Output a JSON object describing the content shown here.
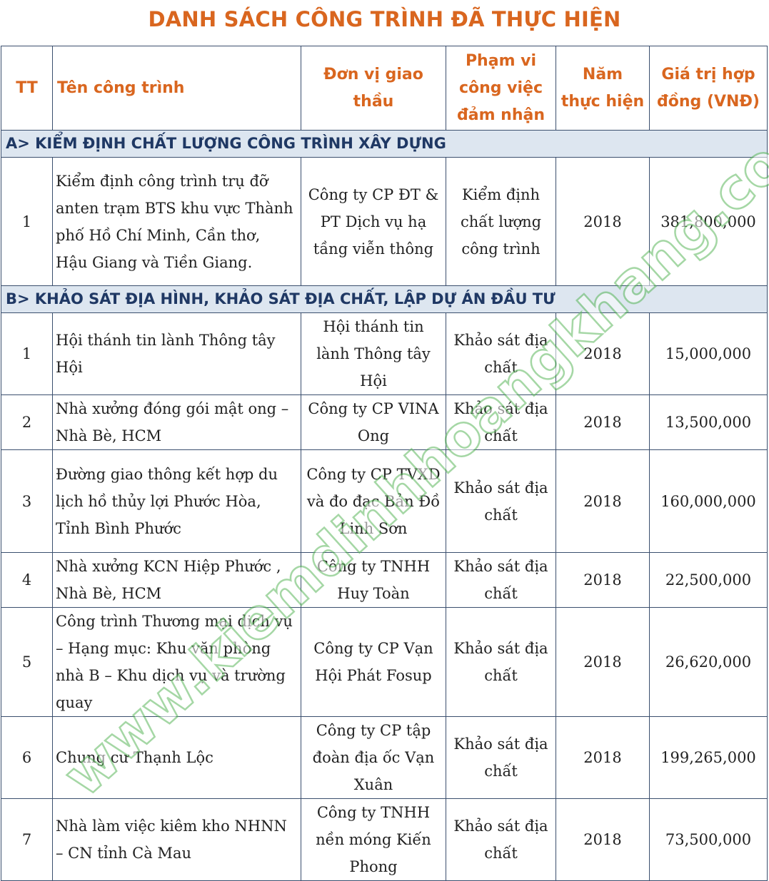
{
  "title": "DANH SÁCH CÔNG TRÌNH ĐÃ THỰC HIỆN",
  "header": {
    "tt": "TT",
    "name": "Tên công trình",
    "unit": "Đơn vị giao thầu",
    "scope": "Phạm vi công việc đảm nhận",
    "year": "Năm thực hiện",
    "value": "Giá trị hợp đồng (VNĐ)"
  },
  "sections": [
    {
      "title": "A> KIỂM ĐỊNH CHẤT LƯỢNG CÔNG TRÌNH XÂY DỰNG",
      "rows": [
        {
          "tt": "1",
          "name": "Kiểm định công trình trụ đỡ anten trạm BTS khu vực Thành phố Hồ Chí Minh, Cần thơ, Hậu Giang và Tiền Giang.",
          "unit": "Công ty CP ĐT & PT Dịch vụ hạ tầng viễn thông",
          "scope": "Kiểm định chất lượng công trình",
          "year": "2018",
          "value": "381,800,000"
        }
      ]
    },
    {
      "title": "B> KHẢO SÁT ĐỊA HÌNH, KHẢO SÁT ĐỊA CHẤT, LẬP DỰ ÁN ĐẦU TƯ",
      "rows": [
        {
          "tt": "1",
          "name": "Hội thánh tin lành Thông tây Hội",
          "unit": "Hội thánh tin lành Thông tây Hội",
          "scope": "Khảo sát địa chất",
          "year": "2018",
          "value": "15,000,000"
        },
        {
          "tt": "2",
          "name": "Nhà xưởng đóng gói mật ong – Nhà Bè, HCM",
          "unit": "Công ty CP VINA Ong",
          "scope": "Khảo sát địa chất",
          "year": "2018",
          "value": "13,500,000"
        },
        {
          "tt": "3",
          "name": "Đường giao thông kết hợp du lịch hồ thủy lợi Phước Hòa, Tỉnh Bình Phước",
          "unit": "Công ty CP TVXD và đo  đạc Bản Đồ Linh Sơn",
          "scope": "Khảo sát địa chất",
          "year": "2018",
          "value": "160,000,000"
        },
        {
          "tt": "4",
          "name": "Nhà xưởng KCN Hiệp Phước , Nhà Bè, HCM",
          "unit": "Công ty TNHH Huy Toàn",
          "scope": "Khảo sát địa chất",
          "year": "2018",
          "value": "22,500,000"
        },
        {
          "tt": "5",
          "name": "Công trình Thương mại dịch vụ – Hạng mục: Khu văn phòng nhà B – Khu dịch vụ và trường quay",
          "unit": "Công ty CP Vạn Hội Phát Fosup",
          "scope": "Khảo sát địa chất",
          "year": "2018",
          "value": "26,620,000"
        },
        {
          "tt": "6",
          "name": "Chung cư Thạnh Lộc",
          "unit": "Công ty CP tập đoàn địa ốc Vạn Xuân",
          "scope": "Khảo sát địa chất",
          "year": "2018",
          "value": "199,265,000"
        },
        {
          "tt": "7",
          "name": "Nhà làm việc kiêm kho NHNN – CN tỉnh Cà Mau",
          "unit": "Công ty TNHH nền móng Kiến Phong",
          "scope": "Khảo sát địa chất",
          "year": "2018",
          "value": "73,500,000"
        }
      ]
    }
  ],
  "watermark": "www.kiemdinhhoangkhang.com"
}
